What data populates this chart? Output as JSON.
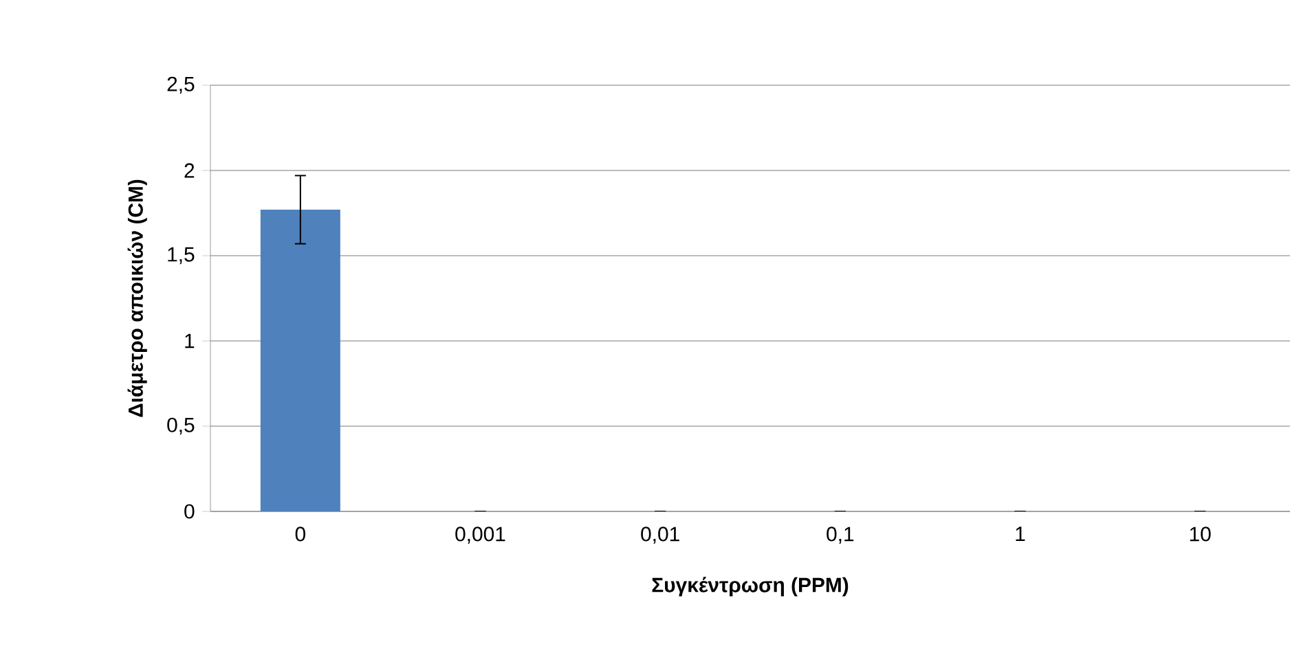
{
  "chart_data": {
    "type": "bar",
    "xlabel": "Συγκέντρωση (PPM)",
    "ylabel": "Διάμετρο  αποικιών (CM)",
    "categories": [
      "0",
      "0,001",
      "0,01",
      "0,1",
      "1",
      "10"
    ],
    "values": [
      1.77,
      0,
      0,
      0,
      0,
      0
    ],
    "errors": [
      0.2,
      0,
      0,
      0,
      0,
      0
    ],
    "color": "#4f81bd",
    "ylim": [
      0,
      2.5
    ],
    "yticks": [
      {
        "value": 0,
        "label": "0"
      },
      {
        "value": 0.5,
        "label": "0,5"
      },
      {
        "value": 1,
        "label": "1"
      },
      {
        "value": 1.5,
        "label": "1,5"
      },
      {
        "value": 2,
        "label": "2"
      },
      {
        "value": 2.5,
        "label": "2,5"
      }
    ],
    "grid": "y"
  }
}
